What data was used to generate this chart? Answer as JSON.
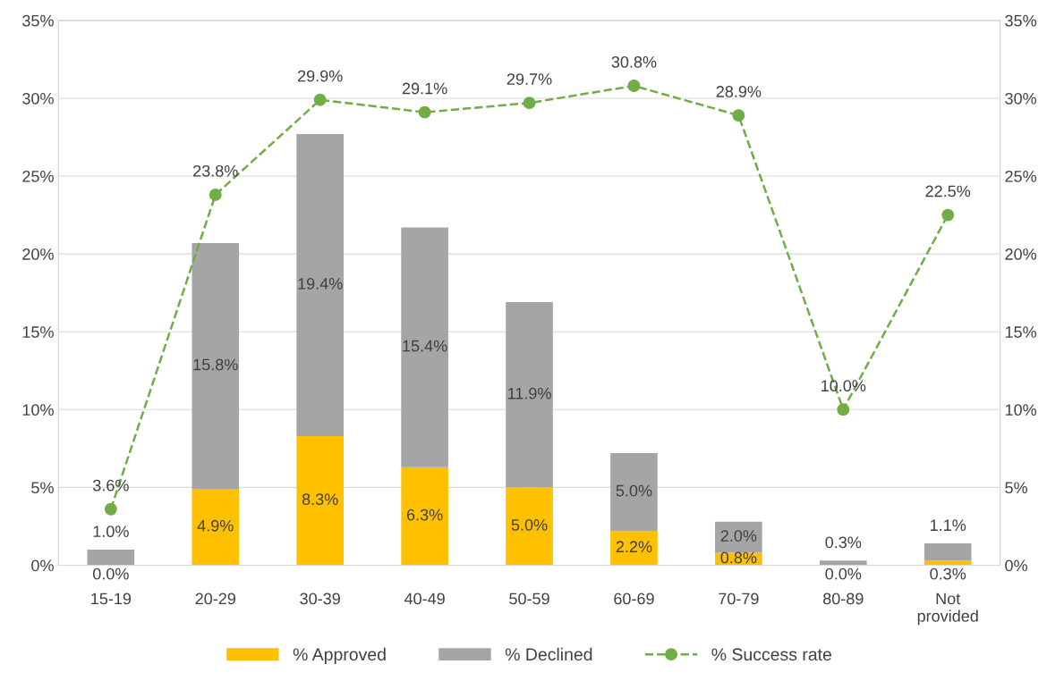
{
  "chart_data": {
    "type": "bar",
    "stacked": true,
    "categories": [
      "15-19",
      "20-29",
      "30-39",
      "40-49",
      "50-59",
      "60-69",
      "70-79",
      "80-89",
      "Not\nprovided"
    ],
    "series": [
      {
        "name": "% Approved",
        "color": "#ffc000",
        "values": [
          0.0,
          4.9,
          8.3,
          6.3,
          5.0,
          2.2,
          0.8,
          0.0,
          0.3
        ],
        "value_labels": [
          "0.0%",
          "4.9%",
          "8.3%",
          "6.3%",
          "5.0%",
          "2.2%",
          "0.8%",
          "0.0%",
          "0.3%"
        ]
      },
      {
        "name": "% Declined",
        "color": "#a5a5a5",
        "values": [
          1.0,
          15.8,
          19.4,
          15.4,
          11.9,
          5.0,
          2.0,
          0.3,
          1.1
        ],
        "value_labels": [
          "1.0%",
          "15.8%",
          "19.4%",
          "15.4%",
          "11.9%",
          "5.0%",
          "2.0%",
          "0.3%",
          "1.1%"
        ]
      },
      {
        "name": "% Success rate",
        "type": "line",
        "axis": "y2",
        "color": "#70ad47",
        "marker": "circle",
        "line_style": "dashed",
        "values": [
          3.6,
          23.8,
          29.9,
          29.1,
          29.7,
          30.8,
          28.9,
          10.0,
          22.5
        ],
        "value_labels": [
          "3.6%",
          "23.8%",
          "29.9%",
          "29.1%",
          "29.7%",
          "30.8%",
          "28.9%",
          "10.0%",
          "22.5%"
        ]
      }
    ],
    "ylim": [
      0,
      35
    ],
    "yticks": [
      {
        "value": 0,
        "label": "0%"
      },
      {
        "value": 5,
        "label": "5%"
      },
      {
        "value": 10,
        "label": "10%"
      },
      {
        "value": 15,
        "label": "15%"
      },
      {
        "value": 20,
        "label": "20%"
      },
      {
        "value": 25,
        "label": "25%"
      },
      {
        "value": 30,
        "label": "30%"
      },
      {
        "value": 35,
        "label": "35%"
      }
    ],
    "y2lim": [
      0,
      35
    ],
    "y2ticks": [
      {
        "value": 0,
        "label": "0%"
      },
      {
        "value": 5,
        "label": "5%"
      },
      {
        "value": 10,
        "label": "10%"
      },
      {
        "value": 15,
        "label": "15%"
      },
      {
        "value": 20,
        "label": "20%"
      },
      {
        "value": 25,
        "label": "25%"
      },
      {
        "value": 30,
        "label": "30%"
      },
      {
        "value": 35,
        "label": "35%"
      }
    ],
    "grid": "y",
    "legend": "bottom"
  }
}
